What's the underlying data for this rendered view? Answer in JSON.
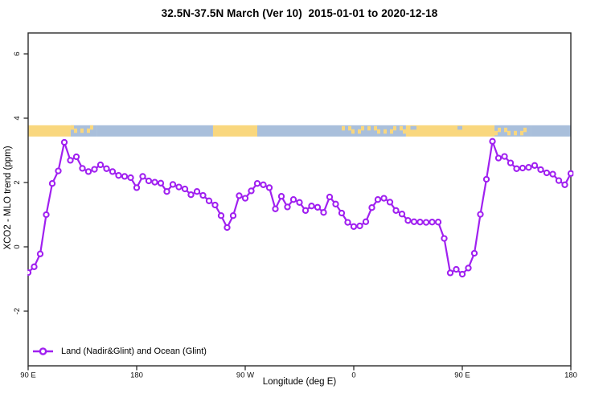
{
  "title": "32.5N-37.5N March (Ver 10)  2015-01-01 to 2020-12-18",
  "chart_data": {
    "type": "line",
    "title": "32.5N-37.5N March (Ver 10)  2015-01-01 to 2020-12-18",
    "xlabel": "Longitude (deg E)",
    "ylabel": "XCO2 - MLO trend (ppm)",
    "grid": false,
    "ylim": [
      -3.65,
      6.7
    ],
    "xlim_deg_eastward": [
      90,
      540
    ],
    "y_ticks": [
      -2,
      0,
      2,
      4,
      6
    ],
    "x_ticks": [
      {
        "deg": 90,
        "label": "90 E"
      },
      {
        "deg": 180,
        "label": "180"
      },
      {
        "deg": 270,
        "label": "90 W"
      },
      {
        "deg": 360,
        "label": "0"
      },
      {
        "deg": 450,
        "label": "90 E"
      },
      {
        "deg": 540,
        "label": "180"
      }
    ],
    "legend": {
      "position": "bottom-left",
      "entries": [
        "Land (Nadir&Glint) and Ocean (Glint)"
      ]
    },
    "series": [
      {
        "name": "Land (Nadir&Glint) and Ocean (Glint)",
        "color": "#A020F0",
        "marker": "open-circle",
        "x_deg": [
          90,
          95,
          100,
          105,
          110,
          115,
          120,
          125,
          130,
          135,
          140,
          145,
          150,
          155,
          160,
          165,
          170,
          175,
          180,
          185,
          190,
          195,
          200,
          205,
          210,
          215,
          220,
          225,
          230,
          235,
          240,
          245,
          250,
          255,
          260,
          265,
          270,
          275,
          280,
          285,
          290,
          295,
          300,
          305,
          310,
          315,
          320,
          325,
          330,
          335,
          340,
          345,
          350,
          355,
          360,
          365,
          370,
          375,
          380,
          385,
          390,
          395,
          400,
          405,
          410,
          415,
          420,
          425,
          430,
          435,
          440,
          445,
          450,
          455,
          460,
          465,
          470,
          475,
          480,
          485,
          490,
          495,
          500,
          505,
          510,
          515,
          520,
          525,
          530,
          535,
          540
        ],
        "values": [
          -0.8,
          -0.62,
          -0.22,
          1.0,
          1.97,
          2.36,
          3.25,
          2.69,
          2.8,
          2.44,
          2.34,
          2.41,
          2.55,
          2.43,
          2.34,
          2.22,
          2.19,
          2.15,
          1.84,
          2.19,
          2.05,
          2.01,
          1.98,
          1.72,
          1.94,
          1.86,
          1.8,
          1.62,
          1.72,
          1.6,
          1.43,
          1.3,
          0.97,
          0.6,
          0.97,
          1.59,
          1.51,
          1.74,
          1.97,
          1.93,
          1.84,
          1.18,
          1.57,
          1.24,
          1.47,
          1.38,
          1.13,
          1.27,
          1.23,
          1.07,
          1.55,
          1.33,
          1.05,
          0.76,
          0.63,
          0.65,
          0.78,
          1.22,
          1.47,
          1.51,
          1.39,
          1.13,
          1.02,
          0.82,
          0.78,
          0.77,
          0.76,
          0.77,
          0.77,
          0.26,
          -0.81,
          -0.7,
          -0.85,
          -0.66,
          -0.2,
          1.01,
          2.1,
          3.28,
          2.76,
          2.81,
          2.61,
          2.43,
          2.45,
          2.47,
          2.53,
          2.4,
          2.3,
          2.26,
          2.06,
          1.93,
          2.28
        ]
      }
    ],
    "land_ocean_strip": {
      "value_top": 3.78,
      "value_bottom": 3.43,
      "land_color": "#F9D77E",
      "ocean_color": "#A9BFDB",
      "segments": [
        {
          "from": 90,
          "to": 125.3,
          "surface": "land"
        },
        {
          "from": 125.3,
          "to": 146.7,
          "surface": "mixed"
        },
        {
          "from": 146.7,
          "to": 243.3,
          "surface": "ocean"
        },
        {
          "from": 243.3,
          "to": 280,
          "surface": "land"
        },
        {
          "from": 280,
          "to": 350,
          "surface": "ocean"
        },
        {
          "from": 350,
          "to": 403.3,
          "surface": "mixed"
        },
        {
          "from": 403.3,
          "to": 476.7,
          "surface": "land"
        },
        {
          "from": 476.7,
          "to": 506.7,
          "surface": "mixed"
        },
        {
          "from": 506.7,
          "to": 540,
          "surface": "ocean"
        }
      ],
      "inland_water": [
        {
          "from": 407,
          "to": 412
        },
        {
          "from": 446,
          "to": 450
        }
      ]
    },
    "axis_color": "#2b2b2b"
  }
}
